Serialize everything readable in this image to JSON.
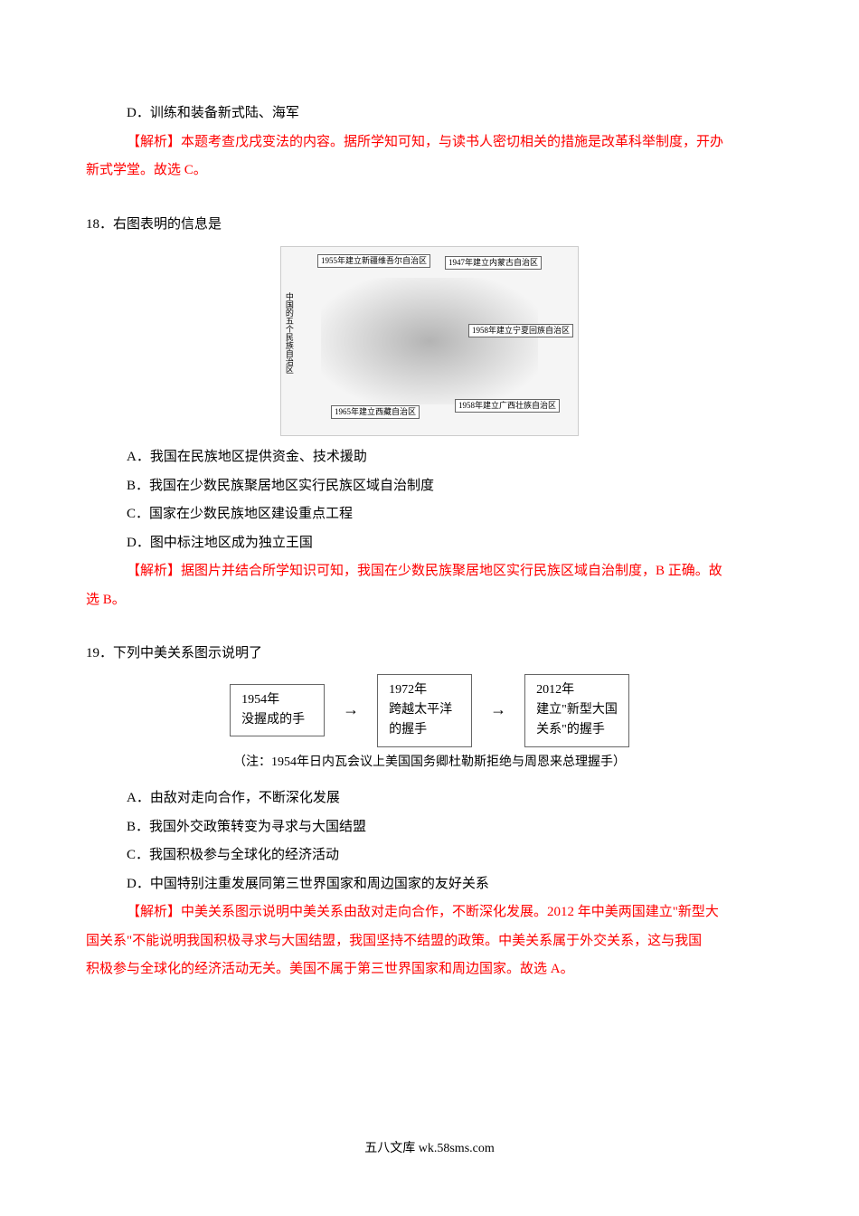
{
  "q17": {
    "optionD": "D．训练和装备新式陆、海军",
    "analysisLabel": "【解析】",
    "analysisBody": "本题考查戊戌变法的内容。据所学知可知，与读书人密切相关的措施是改革科举制度，开办",
    "analysisCont": "新式学堂。故选 C。"
  },
  "q18": {
    "stem": "18．右图表明的信息是",
    "map": {
      "sideLabel": "中国的五个民族自治区",
      "labels": {
        "tl": "1955年建立新疆维吾尔自治区",
        "tr": "1947年建立内蒙古自治区",
        "mr": "1958年建立宁夏回族自治区",
        "br": "1958年建立广西壮族自治区",
        "bl": "1965年建立西藏自治区"
      }
    },
    "optionA": "A．我国在民族地区提供资金、技术援助",
    "optionB": "B．我国在少数民族聚居地区实行民族区域自治制度",
    "optionC": "C．国家在少数民族地区建设重点工程",
    "optionD": "D．图中标注地区成为独立王国",
    "analysisLabel": "【解析】",
    "analysisBody": "据图片并结合所学知识可知，我国在少数民族聚居地区实行民族区域自治制度，B 正确。故",
    "analysisCont": "选 B。"
  },
  "q19": {
    "stem": "19．下列中美关系图示说明了",
    "diagram": {
      "box1_line1": "1954年",
      "box1_line2": "没握成的手",
      "box2_line1": "1972年",
      "box2_line2": "跨越太平洋",
      "box2_line3": "的握手",
      "box3_line1": "2012年",
      "box3_line2": "建立\"新型大国",
      "box3_line3": "关系\"的握手",
      "note": "（注：1954年日内瓦会议上美国国务卿杜勒斯拒绝与周恩来总理握手）"
    },
    "optionA": "A．由敌对走向合作，不断深化发展",
    "optionB": "B．我国外交政策转变为寻求与大国结盟",
    "optionC": "C．我国积极参与全球化的经济活动",
    "optionD": "D．中国特别注重发展同第三世界国家和周边国家的友好关系",
    "analysisLabel": "【解析】",
    "analysisBody": "中美关系图示说明中美关系由敌对走向合作，不断深化发展。2012 年中美两国建立\"新型大",
    "analysisLine2": "国关系\"不能说明我国积极寻求与大国结盟，我国坚持不结盟的政策。中美关系属于外交关系，这与我国",
    "analysisLine3": "积极参与全球化的经济活动无关。美国不属于第三世界国家和周边国家。故选 A。"
  },
  "footer": "五八文库 wk.58sms.com"
}
